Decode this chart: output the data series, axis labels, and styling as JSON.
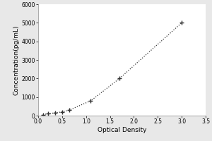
{
  "title": "",
  "xlabel": "Optical Density",
  "ylabel": "Concentration(pg/mL)",
  "x_data": [
    0.1,
    0.2,
    0.35,
    0.5,
    0.65,
    1.1,
    1.7,
    3.0
  ],
  "y_data": [
    50,
    100,
    150,
    200,
    300,
    800,
    2000,
    5000
  ],
  "xlim": [
    0,
    3.5
  ],
  "ylim": [
    0,
    6000
  ],
  "xticks": [
    0,
    0.5,
    1.0,
    1.5,
    2.0,
    2.5,
    3.0,
    3.5
  ],
  "yticks": [
    0,
    1000,
    2000,
    3000,
    4000,
    5000,
    6000
  ],
  "line_color": "#333333",
  "marker": "+",
  "marker_size": 5,
  "linestyle": "dotted",
  "background_color": "#e8e8e8",
  "plot_bg_color": "#ffffff",
  "label_fontsize": 6.5,
  "tick_fontsize": 5.5
}
